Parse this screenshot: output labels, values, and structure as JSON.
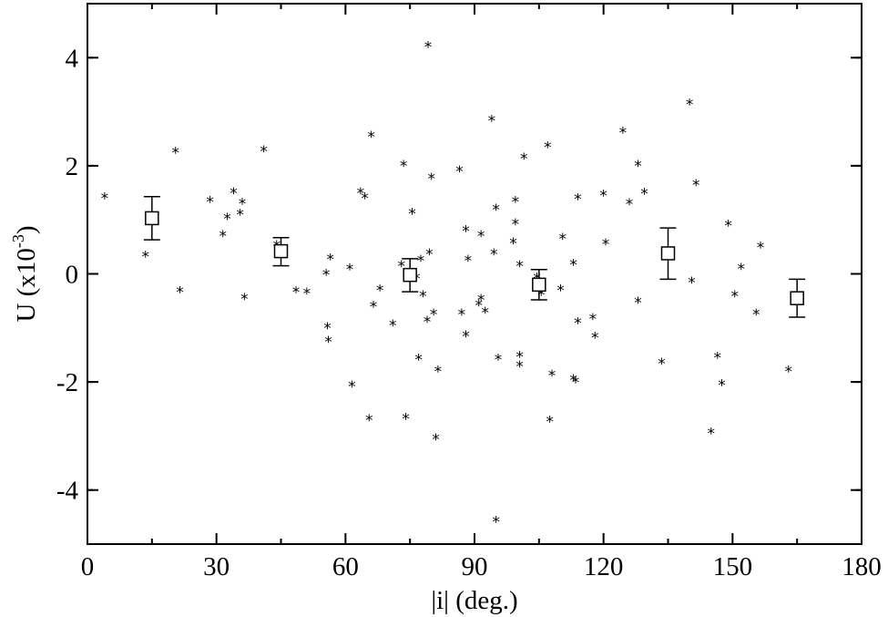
{
  "chart_data": {
    "type": "scatter",
    "xlabel": "|i| (deg.)",
    "ylabel": {
      "main": "U (x10",
      "exp": "-3",
      "close": ")"
    },
    "xlim": [
      0,
      180
    ],
    "ylim": [
      -5,
      5
    ],
    "xticks": [
      0,
      30,
      60,
      90,
      120,
      150,
      180
    ],
    "yticks": [
      -4,
      -2,
      0,
      2,
      4
    ],
    "grid": false,
    "legend": "none",
    "series": [
      {
        "marker": "asterisk",
        "points": [
          [
            4,
            1.43
          ],
          [
            13.5,
            0.35
          ],
          [
            20.5,
            2.28
          ],
          [
            21.5,
            -0.3
          ],
          [
            28.5,
            1.37
          ],
          [
            31.5,
            0.73
          ],
          [
            32.5,
            1.05
          ],
          [
            34,
            1.53
          ],
          [
            35.5,
            1.13
          ],
          [
            36,
            1.33
          ],
          [
            36.5,
            -0.43
          ],
          [
            41,
            2.3
          ],
          [
            44,
            0.55
          ],
          [
            48.5,
            -0.3
          ],
          [
            51,
            -0.33
          ],
          [
            55.5,
            0.02
          ],
          [
            55.8,
            -0.97
          ],
          [
            56,
            -1.22
          ],
          [
            56.5,
            0.3
          ],
          [
            61,
            0.12
          ],
          [
            61.5,
            -2.05
          ],
          [
            63.5,
            1.53
          ],
          [
            64.5,
            1.43
          ],
          [
            65.5,
            -2.67
          ],
          [
            66,
            2.57
          ],
          [
            66.5,
            -0.57
          ],
          [
            68,
            -0.27
          ],
          [
            71,
            -0.92
          ],
          [
            73,
            0.18
          ],
          [
            73.5,
            2.03
          ],
          [
            74,
            -2.65
          ],
          [
            75.5,
            1.15
          ],
          [
            76.5,
            -0.05
          ],
          [
            77,
            -1.55
          ],
          [
            77.5,
            0.28
          ],
          [
            78,
            -0.38
          ],
          [
            79,
            -0.85
          ],
          [
            79.5,
            0.4
          ],
          [
            79.2,
            4.23
          ],
          [
            80,
            1.8
          ],
          [
            80.5,
            -0.72
          ],
          [
            81,
            -3.03
          ],
          [
            81.5,
            -1.77
          ],
          [
            86.5,
            1.93
          ],
          [
            87,
            -0.72
          ],
          [
            88,
            0.83
          ],
          [
            88,
            -1.12
          ],
          [
            88.5,
            0.28
          ],
          [
            91,
            -0.55
          ],
          [
            91.5,
            0.73
          ],
          [
            91.5,
            -0.45
          ],
          [
            92.5,
            -0.68
          ],
          [
            94,
            2.87
          ],
          [
            94.5,
            0.4
          ],
          [
            95,
            1.22
          ],
          [
            95.5,
            -1.55
          ],
          [
            95,
            -4.55
          ],
          [
            99,
            0.6
          ],
          [
            99.5,
            1.37
          ],
          [
            99.5,
            0.95
          ],
          [
            100.5,
            0.18
          ],
          [
            100.5,
            -1.5
          ],
          [
            100.5,
            -1.68
          ],
          [
            101.5,
            2.17
          ],
          [
            104.5,
            -0.05
          ],
          [
            105.5,
            -0.35
          ],
          [
            107,
            2.38
          ],
          [
            107.5,
            -2.7
          ],
          [
            108,
            -1.85
          ],
          [
            110,
            -0.27
          ],
          [
            110.5,
            0.68
          ],
          [
            113,
            0.2
          ],
          [
            113,
            -1.93
          ],
          [
            113.5,
            -1.97
          ],
          [
            114,
            1.42
          ],
          [
            114,
            -0.88
          ],
          [
            117.5,
            -0.8
          ],
          [
            118,
            -1.15
          ],
          [
            120,
            1.48
          ],
          [
            120.5,
            0.58
          ],
          [
            124.5,
            2.65
          ],
          [
            126,
            1.32
          ],
          [
            128,
            2.03
          ],
          [
            128,
            -0.5
          ],
          [
            129.5,
            1.52
          ],
          [
            133.5,
            -1.63
          ],
          [
            140,
            3.17
          ],
          [
            140.5,
            -0.13
          ],
          [
            141.5,
            1.68
          ],
          [
            145,
            -2.92
          ],
          [
            146.5,
            -1.52
          ],
          [
            147.5,
            -2.02
          ],
          [
            149,
            0.93
          ],
          [
            150.5,
            -0.38
          ],
          [
            152,
            0.13
          ],
          [
            155.5,
            -0.72
          ],
          [
            156.5,
            0.52
          ],
          [
            163,
            -1.77
          ]
        ]
      },
      {
        "marker": "open-square-errorbar",
        "points": [
          {
            "x": 15,
            "y": 1.03,
            "lo": 0.63,
            "hi": 1.43
          },
          {
            "x": 45,
            "y": 0.42,
            "lo": 0.15,
            "hi": 0.67
          },
          {
            "x": 75,
            "y": -0.02,
            "lo": -0.33,
            "hi": 0.28
          },
          {
            "x": 105,
            "y": -0.2,
            "lo": -0.48,
            "hi": 0.08
          },
          {
            "x": 135,
            "y": 0.38,
            "lo": -0.1,
            "hi": 0.85
          },
          {
            "x": 165,
            "y": -0.45,
            "lo": -0.8,
            "hi": -0.1
          }
        ]
      }
    ]
  }
}
